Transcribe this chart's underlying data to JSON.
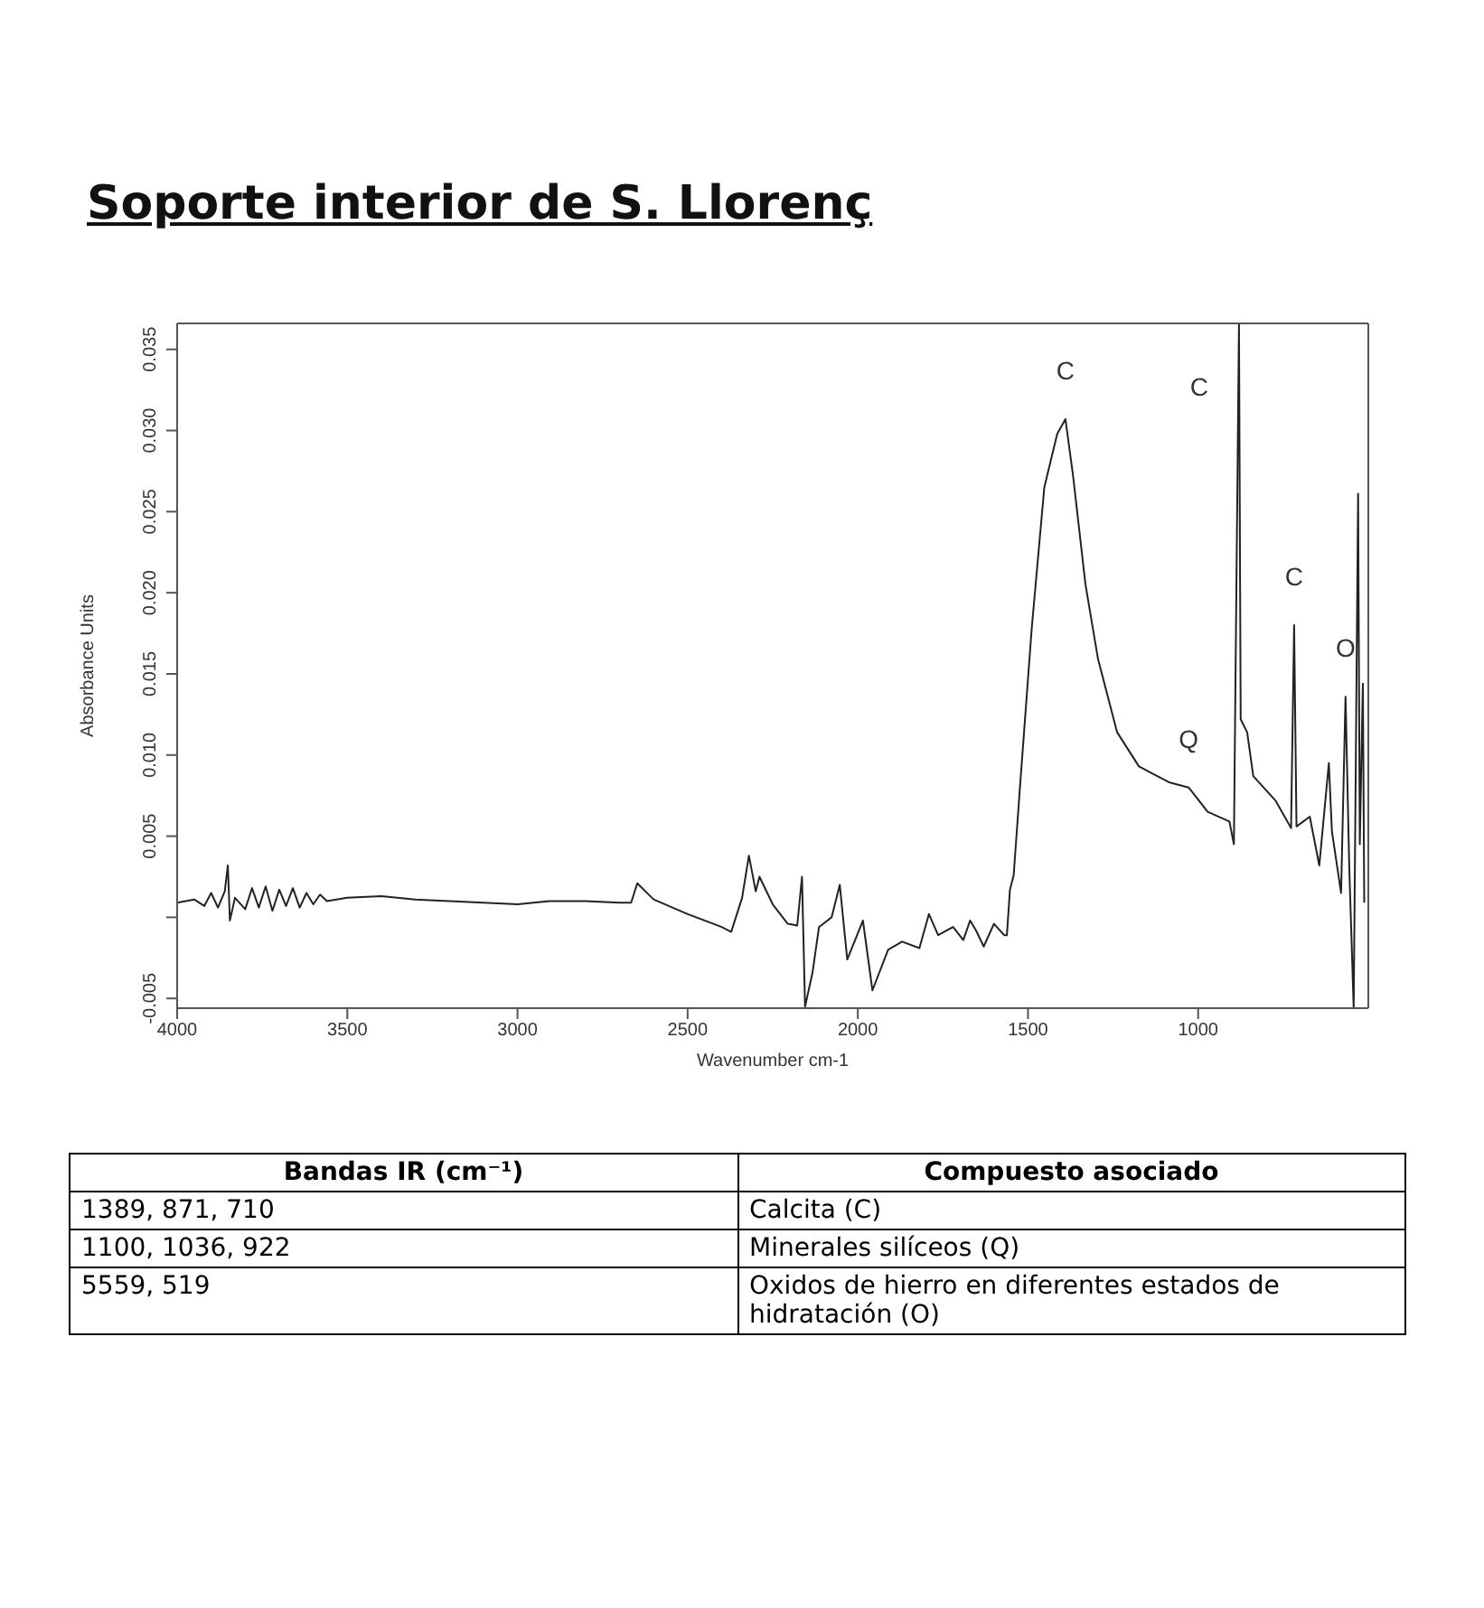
{
  "chart_data": {
    "type": "line",
    "title": "Soporte interior de S. Llorenç",
    "xlabel": "Wavenumber cm-1",
    "ylabel": "Absorbance Units",
    "xlim": [
      4000,
      500
    ],
    "ylim": [
      -0.0056,
      0.0366
    ],
    "xticks": [
      4000,
      3500,
      3000,
      2500,
      2000,
      1500,
      1000
    ],
    "yticks": [
      {
        "value": -0.005,
        "label": "-0.005"
      },
      {
        "value": 0,
        "label": null
      },
      {
        "value": 0.005,
        "label": "0.005"
      },
      {
        "value": 0.01,
        "label": "0.010"
      },
      {
        "value": 0.015,
        "label": "0.015"
      },
      {
        "value": 0.02,
        "label": "0.020"
      },
      {
        "value": 0.025,
        "label": "0.025"
      },
      {
        "value": 0.03,
        "label": "0.030"
      },
      {
        "value": 0.035,
        "label": "0.035"
      }
    ],
    "marker": "none",
    "line_style": "solid",
    "series": [
      {
        "color": "#222222",
        "x": [
          4000,
          3950,
          3920,
          3900,
          3880,
          3860,
          3851,
          3845,
          3830,
          3800,
          3780,
          3760,
          3740,
          3720,
          3700,
          3680,
          3660,
          3640,
          3620,
          3600,
          3580,
          3560,
          3500,
          3400,
          3300,
          3200,
          3100,
          3000,
          2906,
          2800,
          2700,
          2666,
          2648,
          2600,
          2500,
          2400,
          2372,
          2340,
          2320,
          2300,
          2289,
          2250,
          2206,
          2178,
          2164,
          2155,
          2133,
          2114,
          2077,
          2053,
          2031,
          1985,
          1957,
          1911,
          1870,
          1819,
          1791,
          1764,
          1720,
          1690,
          1670,
          1653,
          1630,
          1600,
          1570,
          1562,
          1553,
          1542,
          1525,
          1489,
          1452,
          1414,
          1390,
          1368,
          1331,
          1294,
          1238,
          1174,
          1083,
          1028,
          972,
          908,
          895,
          880,
          875,
          856,
          838,
          773,
          727,
          718,
          711,
          672,
          644,
          616,
          607,
          580,
          567,
          556,
          543,
          530,
          525,
          516,
          512
        ],
        "values": [
          0.0009,
          0.0011,
          0.0007,
          0.0015,
          0.0006,
          0.0016,
          0.0032,
          -0.0002,
          0.0012,
          0.0005,
          0.0018,
          0.0006,
          0.0019,
          0.0004,
          0.0017,
          0.0007,
          0.0018,
          0.0006,
          0.0015,
          0.0008,
          0.0014,
          0.001,
          0.0012,
          0.0013,
          0.0011,
          0.001,
          0.0009,
          0.0008,
          0.001,
          0.001,
          0.0009,
          0.0009,
          0.0021,
          0.0011,
          0.0002,
          -0.0006,
          -0.0009,
          0.0012,
          0.0038,
          0.0016,
          0.0025,
          0.0008,
          -0.0004,
          -0.0005,
          0.0025,
          -0.0055,
          -0.0034,
          -0.0006,
          0.0,
          0.002,
          -0.0026,
          -0.0002,
          -0.0045,
          -0.002,
          -0.0015,
          -0.0019,
          0.0002,
          -0.0011,
          -0.0006,
          -0.0014,
          -0.0002,
          -0.0008,
          -0.0018,
          -0.0004,
          -0.0011,
          -0.0011,
          0.0017,
          0.0026,
          0.0076,
          0.0178,
          0.0265,
          0.0298,
          0.0307,
          0.0273,
          0.0205,
          0.0159,
          0.0114,
          0.0093,
          0.0083,
          0.008,
          0.0065,
          0.0059,
          0.0045,
          0.0366,
          0.0122,
          0.0114,
          0.0087,
          0.0072,
          0.0055,
          0.018,
          0.0056,
          0.0062,
          0.0032,
          0.0095,
          0.0053,
          0.0015,
          0.0136,
          0.0031,
          -0.0056,
          0.0261,
          0.0045,
          0.0144,
          0.0009
        ]
      }
    ],
    "annotations": [
      {
        "text": "C",
        "x": 1390,
        "y": 0.0307
      },
      {
        "text": "C",
        "x": 880,
        "y": 0.0366
      },
      {
        "text": "C",
        "x": 718,
        "y": 0.018
      },
      {
        "text": "O",
        "x": 567,
        "y": 0.0136
      },
      {
        "text": "Q",
        "x": 1028,
        "y": 0.008
      },
      "Bandas IR (cm⁻¹)",
      "Compuesto asociado",
      "1389, 871, 710",
      "Calcita (C)",
      "1100, 1036, 922",
      "Minerales silíceos (Q)",
      "5559, 519",
      "Oxidos de hierro en diferentes estados de hidratación (O)"
    ]
  }
}
